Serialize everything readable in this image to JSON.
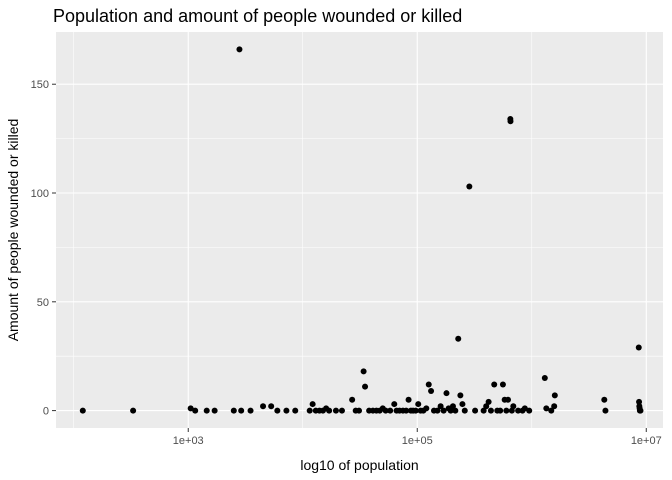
{
  "chart_data": {
    "type": "scatter",
    "title": "Population and amount of people wounded or killed",
    "xlabel": "log10 of population",
    "ylabel": "Amount of people wounded or killed",
    "x_scale": "log10",
    "xlim": [
      70,
      14000000
    ],
    "ylim": [
      -8,
      174
    ],
    "x_ticks": [
      {
        "value": 1000,
        "label": "1e+03"
      },
      {
        "value": 100000,
        "label": "1e+05"
      },
      {
        "value": 10000000,
        "label": "1e+07"
      }
    ],
    "y_ticks": [
      {
        "value": 0,
        "label": "0"
      },
      {
        "value": 50,
        "label": "50"
      },
      {
        "value": 100,
        "label": "100"
      },
      {
        "value": 150,
        "label": "150"
      }
    ],
    "grid": true,
    "legend": "none",
    "point_color": "#000000",
    "panel_background": "#ebebeb",
    "points": [
      {
        "x": 120,
        "y": 0
      },
      {
        "x": 330,
        "y": 0
      },
      {
        "x": 1050,
        "y": 1
      },
      {
        "x": 1150,
        "y": 0
      },
      {
        "x": 1450,
        "y": 0
      },
      {
        "x": 1700,
        "y": 0
      },
      {
        "x": 2500,
        "y": 0
      },
      {
        "x": 2800,
        "y": 166
      },
      {
        "x": 2900,
        "y": 0
      },
      {
        "x": 3500,
        "y": 0
      },
      {
        "x": 4500,
        "y": 2
      },
      {
        "x": 5300,
        "y": 2
      },
      {
        "x": 6000,
        "y": 0
      },
      {
        "x": 7200,
        "y": 0
      },
      {
        "x": 8600,
        "y": 0
      },
      {
        "x": 11500,
        "y": 0
      },
      {
        "x": 12200,
        "y": 3
      },
      {
        "x": 13000,
        "y": 0
      },
      {
        "x": 14000,
        "y": 0
      },
      {
        "x": 15000,
        "y": 0
      },
      {
        "x": 16000,
        "y": 1
      },
      {
        "x": 17000,
        "y": 0
      },
      {
        "x": 19500,
        "y": 0
      },
      {
        "x": 22000,
        "y": 0
      },
      {
        "x": 27000,
        "y": 5
      },
      {
        "x": 29000,
        "y": 0
      },
      {
        "x": 31000,
        "y": 0
      },
      {
        "x": 34000,
        "y": 18
      },
      {
        "x": 35000,
        "y": 11
      },
      {
        "x": 38000,
        "y": 0
      },
      {
        "x": 41000,
        "y": 0
      },
      {
        "x": 44000,
        "y": 0
      },
      {
        "x": 47000,
        "y": 0
      },
      {
        "x": 50000,
        "y": 1
      },
      {
        "x": 53000,
        "y": 0
      },
      {
        "x": 58000,
        "y": 0
      },
      {
        "x": 63000,
        "y": 3
      },
      {
        "x": 66000,
        "y": 0
      },
      {
        "x": 70000,
        "y": 0
      },
      {
        "x": 75000,
        "y": 0
      },
      {
        "x": 80000,
        "y": 0
      },
      {
        "x": 84000,
        "y": 5
      },
      {
        "x": 88000,
        "y": 0
      },
      {
        "x": 92000,
        "y": 0
      },
      {
        "x": 97000,
        "y": 0
      },
      {
        "x": 102000,
        "y": 3
      },
      {
        "x": 107000,
        "y": 0
      },
      {
        "x": 113000,
        "y": 0
      },
      {
        "x": 120000,
        "y": 1
      },
      {
        "x": 126000,
        "y": 12
      },
      {
        "x": 132000,
        "y": 9
      },
      {
        "x": 140000,
        "y": 0
      },
      {
        "x": 150000,
        "y": 0
      },
      {
        "x": 160000,
        "y": 2
      },
      {
        "x": 170000,
        "y": 0
      },
      {
        "x": 180000,
        "y": 8
      },
      {
        "x": 188000,
        "y": 1
      },
      {
        "x": 196000,
        "y": 0
      },
      {
        "x": 205000,
        "y": 2
      },
      {
        "x": 215000,
        "y": 0
      },
      {
        "x": 228000,
        "y": 33
      },
      {
        "x": 238000,
        "y": 7
      },
      {
        "x": 248000,
        "y": 3
      },
      {
        "x": 260000,
        "y": 0
      },
      {
        "x": 285000,
        "y": 103
      },
      {
        "x": 320000,
        "y": 0
      },
      {
        "x": 380000,
        "y": 0
      },
      {
        "x": 400000,
        "y": 2
      },
      {
        "x": 420000,
        "y": 4
      },
      {
        "x": 440000,
        "y": 0
      },
      {
        "x": 470000,
        "y": 12
      },
      {
        "x": 500000,
        "y": 0
      },
      {
        "x": 530000,
        "y": 0
      },
      {
        "x": 560000,
        "y": 12
      },
      {
        "x": 580000,
        "y": 5
      },
      {
        "x": 600000,
        "y": 0
      },
      {
        "x": 620000,
        "y": 5
      },
      {
        "x": 650000,
        "y": 134
      },
      {
        "x": 652000,
        "y": 133
      },
      {
        "x": 670000,
        "y": 0
      },
      {
        "x": 690000,
        "y": 2
      },
      {
        "x": 760000,
        "y": 0
      },
      {
        "x": 830000,
        "y": 0
      },
      {
        "x": 870000,
        "y": 1
      },
      {
        "x": 950000,
        "y": 0
      },
      {
        "x": 1300000,
        "y": 15
      },
      {
        "x": 1340000,
        "y": 1
      },
      {
        "x": 1480000,
        "y": 0
      },
      {
        "x": 1570000,
        "y": 2
      },
      {
        "x": 1590000,
        "y": 7
      },
      {
        "x": 4300000,
        "y": 5
      },
      {
        "x": 4400000,
        "y": 0
      },
      {
        "x": 8600000,
        "y": 29
      },
      {
        "x": 8650000,
        "y": 4
      },
      {
        "x": 8700000,
        "y": 2
      },
      {
        "x": 8750000,
        "y": 1
      },
      {
        "x": 8800000,
        "y": 0
      },
      {
        "x": 8900000,
        "y": 0
      }
    ]
  }
}
